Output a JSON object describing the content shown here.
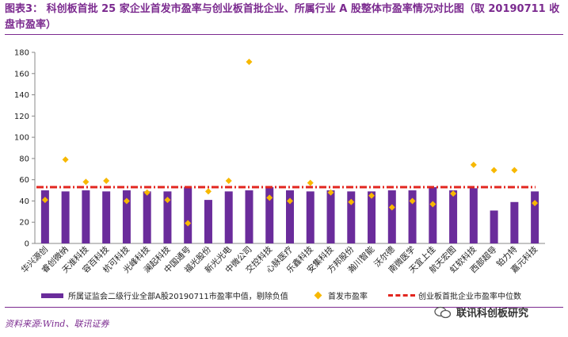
{
  "title": "图表3： 科创板首批 25 家企业首发市盈率与创业板首批企业、所属行业 A 股整体市盈率情况对比图（取 20190711 收盘市盈率）",
  "chart_data": {
    "type": "bar",
    "categories": [
      "华兴源创",
      "睿创微纳",
      "天准科技",
      "容百科技",
      "杭可科技",
      "光峰科技",
      "澜起科技",
      "中国通号",
      "福光股份",
      "新光光电",
      "中微公司",
      "交控科技",
      "心脉医疗",
      "乐鑫科技",
      "安集科技",
      "方邦股份",
      "瀚川智能",
      "沃尔德",
      "南微医学",
      "天宜上佳",
      "航天宏图",
      "虹软科技",
      "西部超导",
      "铂力特",
      "嘉元科技"
    ],
    "series": [
      {
        "name": "所属证监会二级行业全部A股20190711市盈率中值，剔除负值",
        "type": "bar",
        "color": "#6a2c9b",
        "values": [
          50,
          49,
          50,
          49,
          50,
          49,
          49,
          53,
          41,
          49,
          50,
          53,
          50,
          49,
          50,
          49,
          49,
          50,
          50,
          53,
          50,
          52,
          31,
          39,
          49
        ]
      },
      {
        "name": "首发市盈率",
        "type": "scatter",
        "color": "#f7b800",
        "values": [
          41,
          79,
          58,
          59,
          40,
          48,
          41,
          19,
          49,
          59,
          171,
          43,
          40,
          57,
          48,
          39,
          45,
          34,
          40,
          37,
          47,
          74,
          69,
          69,
          38
        ]
      },
      {
        "name": "创业板首批企业市盈率中位数",
        "type": "line",
        "color": "#e2261f",
        "value": 53
      }
    ],
    "ylim": [
      0,
      180
    ],
    "yticks": [
      0,
      20,
      40,
      60,
      80,
      100,
      120,
      140,
      160,
      180
    ],
    "grid": false,
    "legend": "bottom"
  },
  "source": "资料来源:Wind、联讯证券",
  "watermark": "联讯科创板研究"
}
